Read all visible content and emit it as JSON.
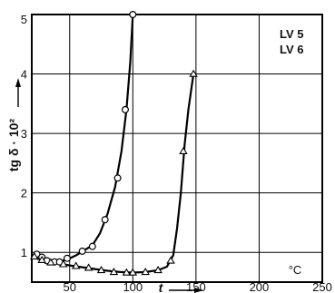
{
  "chart_data": {
    "type": "line",
    "title": "",
    "xlabel": "t",
    "ylabel": "tg δ · 10²",
    "x_unit": "°C",
    "xlim": [
      20,
      250
    ],
    "ylim": [
      0.5,
      5
    ],
    "x_ticks": [
      "50",
      "100",
      "150",
      "200",
      "250"
    ],
    "y_ticks": [
      "1",
      "2",
      "3",
      "4",
      "5"
    ],
    "grid": true,
    "legend": [
      "LV 5",
      "LV 6"
    ],
    "legend_position": "top-right",
    "series": [
      {
        "name": "LV 5",
        "marker": "circle",
        "points": [
          [
            24,
            0.97
          ],
          [
            28,
            0.92
          ],
          [
            32,
            0.86
          ],
          [
            38,
            0.84
          ],
          [
            42,
            0.84
          ],
          [
            48,
            0.9
          ],
          [
            60,
            1.02
          ],
          [
            68,
            1.1
          ],
          [
            78,
            1.55
          ],
          [
            88,
            2.25
          ],
          [
            94,
            3.4
          ],
          [
            100,
            5.0
          ]
        ],
        "curve": [
          [
            20,
            0.96
          ],
          [
            25,
            0.93
          ],
          [
            30,
            0.89
          ],
          [
            35,
            0.86
          ],
          [
            40,
            0.84
          ],
          [
            48,
            0.88
          ],
          [
            55,
            0.95
          ],
          [
            62,
            1.04
          ],
          [
            68,
            1.12
          ],
          [
            74,
            1.32
          ],
          [
            80,
            1.65
          ],
          [
            86,
            2.1
          ],
          [
            91,
            2.7
          ],
          [
            95,
            3.4
          ],
          [
            98,
            4.2
          ],
          [
            100,
            5.0
          ]
        ]
      },
      {
        "name": "LV 6",
        "marker": "triangle",
        "points": [
          [
            22,
            0.93
          ],
          [
            28,
            0.87
          ],
          [
            35,
            0.83
          ],
          [
            45,
            0.8
          ],
          [
            55,
            0.77
          ],
          [
            65,
            0.74
          ],
          [
            75,
            0.7
          ],
          [
            85,
            0.67
          ],
          [
            95,
            0.66
          ],
          [
            100,
            0.66
          ],
          [
            110,
            0.67
          ],
          [
            120,
            0.7
          ],
          [
            130,
            0.86
          ],
          [
            140,
            2.7
          ],
          [
            148,
            4.0
          ]
        ],
        "curve": [
          [
            20,
            0.92
          ],
          [
            30,
            0.86
          ],
          [
            40,
            0.82
          ],
          [
            50,
            0.78
          ],
          [
            60,
            0.75
          ],
          [
            70,
            0.72
          ],
          [
            80,
            0.69
          ],
          [
            90,
            0.67
          ],
          [
            100,
            0.66
          ],
          [
            110,
            0.67
          ],
          [
            120,
            0.7
          ],
          [
            127,
            0.76
          ],
          [
            132,
            0.95
          ],
          [
            135,
            1.4
          ],
          [
            138,
            2.0
          ],
          [
            141,
            2.8
          ],
          [
            144,
            3.4
          ],
          [
            148,
            4.0
          ]
        ]
      }
    ]
  }
}
